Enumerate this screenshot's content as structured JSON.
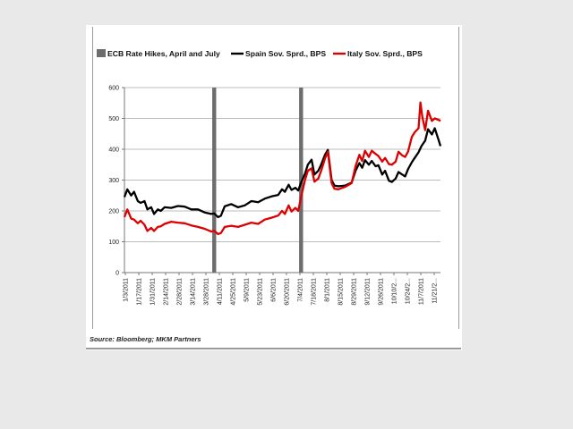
{
  "chart_data": {
    "type": "line",
    "title": "",
    "xlabel": "",
    "ylabel": "",
    "ylim": [
      0,
      600
    ],
    "yticks": [
      0,
      100,
      200,
      300,
      400,
      500,
      600
    ],
    "grid": "horizontal",
    "legend_position": "top",
    "x_tick_labels": [
      "1/3/2011",
      "1/17/2011",
      "1/31/2011",
      "2/14/2011",
      "2/28/2011",
      "3/14/2011",
      "3/28/2011",
      "4/11/2011",
      "4/25/2011",
      "5/9/2011",
      "5/23/2011",
      "6/6/2011",
      "6/20/2011",
      "7/4/2011",
      "7/18/2011",
      "8/1/2011",
      "8/15/2011",
      "8/29/2011",
      "9/12/2011",
      "9/26/2011",
      "10/10/2...",
      "10/24/2...",
      "11/7/2011",
      "11/21/2..."
    ],
    "x_start": "2011-01-03",
    "x_end": "2011-11-30",
    "legend": [
      {
        "label": "ECB Rate Hikes, April and July",
        "color": "#6d6d6d",
        "kind": "bar"
      },
      {
        "label": "Spain Sov. Sprd., BPS",
        "color": "#000000",
        "kind": "line"
      },
      {
        "label": "Italy Sov. Sprd., BPS",
        "color": "#dd0000",
        "kind": "line"
      }
    ],
    "events": [
      {
        "label": "ECB Rate Hike",
        "date": "2011-04-07"
      },
      {
        "label": "ECB Rate Hike",
        "date": "2011-07-07"
      }
    ],
    "series": [
      {
        "name": "Spain Sov. Sprd., BPS",
        "color": "#000000",
        "points": [
          [
            "2011-01-03",
            245
          ],
          [
            "2011-01-06",
            270
          ],
          [
            "2011-01-10",
            250
          ],
          [
            "2011-01-13",
            262
          ],
          [
            "2011-01-17",
            232
          ],
          [
            "2011-01-20",
            226
          ],
          [
            "2011-01-24",
            232
          ],
          [
            "2011-01-27",
            205
          ],
          [
            "2011-01-31",
            212
          ],
          [
            "2011-02-03",
            190
          ],
          [
            "2011-02-07",
            205
          ],
          [
            "2011-02-10",
            200
          ],
          [
            "2011-02-14",
            212
          ],
          [
            "2011-02-21",
            210
          ],
          [
            "2011-02-28",
            216
          ],
          [
            "2011-03-07",
            214
          ],
          [
            "2011-03-14",
            205
          ],
          [
            "2011-03-21",
            205
          ],
          [
            "2011-03-28",
            195
          ],
          [
            "2011-04-04",
            190
          ],
          [
            "2011-04-07",
            192
          ],
          [
            "2011-04-11",
            180
          ],
          [
            "2011-04-14",
            184
          ],
          [
            "2011-04-18",
            215
          ],
          [
            "2011-04-25",
            222
          ],
          [
            "2011-05-02",
            212
          ],
          [
            "2011-05-09",
            218
          ],
          [
            "2011-05-16",
            232
          ],
          [
            "2011-05-23",
            228
          ],
          [
            "2011-05-30",
            240
          ],
          [
            "2011-06-06",
            247
          ],
          [
            "2011-06-13",
            252
          ],
          [
            "2011-06-17",
            270
          ],
          [
            "2011-06-20",
            262
          ],
          [
            "2011-06-24",
            285
          ],
          [
            "2011-06-27",
            268
          ],
          [
            "2011-07-01",
            275
          ],
          [
            "2011-07-04",
            266
          ],
          [
            "2011-07-07",
            292
          ],
          [
            "2011-07-11",
            320
          ],
          [
            "2011-07-14",
            350
          ],
          [
            "2011-07-18",
            366
          ],
          [
            "2011-07-21",
            318
          ],
          [
            "2011-07-25",
            330
          ],
          [
            "2011-07-28",
            350
          ],
          [
            "2011-08-01",
            382
          ],
          [
            "2011-08-04",
            398
          ],
          [
            "2011-08-08",
            300
          ],
          [
            "2011-08-11",
            282
          ],
          [
            "2011-08-15",
            280
          ],
          [
            "2011-08-22",
            282
          ],
          [
            "2011-08-29",
            292
          ],
          [
            "2011-09-02",
            330
          ],
          [
            "2011-09-06",
            355
          ],
          [
            "2011-09-09",
            340
          ],
          [
            "2011-09-12",
            365
          ],
          [
            "2011-09-16",
            350
          ],
          [
            "2011-09-19",
            362
          ],
          [
            "2011-09-23",
            345
          ],
          [
            "2011-09-26",
            348
          ],
          [
            "2011-09-30",
            318
          ],
          [
            "2011-10-03",
            330
          ],
          [
            "2011-10-07",
            298
          ],
          [
            "2011-10-10",
            294
          ],
          [
            "2011-10-14",
            305
          ],
          [
            "2011-10-17",
            326
          ],
          [
            "2011-10-21",
            318
          ],
          [
            "2011-10-24",
            312
          ],
          [
            "2011-10-27",
            335
          ],
          [
            "2011-10-31",
            358
          ],
          [
            "2011-11-03",
            372
          ],
          [
            "2011-11-07",
            390
          ],
          [
            "2011-11-10",
            410
          ],
          [
            "2011-11-14",
            428
          ],
          [
            "2011-11-17",
            465
          ],
          [
            "2011-11-21",
            448
          ],
          [
            "2011-11-24",
            468
          ],
          [
            "2011-11-28",
            430
          ],
          [
            "2011-11-30",
            410
          ]
        ]
      },
      {
        "name": "Italy Sov. Sprd., BPS",
        "color": "#dd0000",
        "points": [
          [
            "2011-01-03",
            180
          ],
          [
            "2011-01-06",
            205
          ],
          [
            "2011-01-10",
            175
          ],
          [
            "2011-01-13",
            172
          ],
          [
            "2011-01-17",
            160
          ],
          [
            "2011-01-20",
            168
          ],
          [
            "2011-01-24",
            155
          ],
          [
            "2011-01-27",
            135
          ],
          [
            "2011-01-31",
            145
          ],
          [
            "2011-02-03",
            135
          ],
          [
            "2011-02-07",
            148
          ],
          [
            "2011-02-10",
            150
          ],
          [
            "2011-02-14",
            158
          ],
          [
            "2011-02-21",
            165
          ],
          [
            "2011-02-28",
            162
          ],
          [
            "2011-03-07",
            160
          ],
          [
            "2011-03-14",
            153
          ],
          [
            "2011-03-21",
            148
          ],
          [
            "2011-03-28",
            142
          ],
          [
            "2011-04-04",
            133
          ],
          [
            "2011-04-07",
            136
          ],
          [
            "2011-04-11",
            125
          ],
          [
            "2011-04-14",
            128
          ],
          [
            "2011-04-18",
            148
          ],
          [
            "2011-04-25",
            152
          ],
          [
            "2011-05-02",
            148
          ],
          [
            "2011-05-09",
            155
          ],
          [
            "2011-05-16",
            162
          ],
          [
            "2011-05-23",
            158
          ],
          [
            "2011-05-30",
            172
          ],
          [
            "2011-06-06",
            178
          ],
          [
            "2011-06-13",
            185
          ],
          [
            "2011-06-17",
            200
          ],
          [
            "2011-06-20",
            190
          ],
          [
            "2011-06-24",
            218
          ],
          [
            "2011-06-27",
            198
          ],
          [
            "2011-07-01",
            210
          ],
          [
            "2011-07-04",
            200
          ],
          [
            "2011-07-07",
            245
          ],
          [
            "2011-07-11",
            300
          ],
          [
            "2011-07-14",
            330
          ],
          [
            "2011-07-18",
            338
          ],
          [
            "2011-07-21",
            295
          ],
          [
            "2011-07-25",
            305
          ],
          [
            "2011-07-28",
            330
          ],
          [
            "2011-08-01",
            370
          ],
          [
            "2011-08-04",
            392
          ],
          [
            "2011-08-08",
            290
          ],
          [
            "2011-08-11",
            272
          ],
          [
            "2011-08-15",
            270
          ],
          [
            "2011-08-22",
            278
          ],
          [
            "2011-08-29",
            290
          ],
          [
            "2011-09-02",
            345
          ],
          [
            "2011-09-06",
            382
          ],
          [
            "2011-09-09",
            362
          ],
          [
            "2011-09-12",
            395
          ],
          [
            "2011-09-16",
            375
          ],
          [
            "2011-09-19",
            395
          ],
          [
            "2011-09-23",
            385
          ],
          [
            "2011-09-26",
            378
          ],
          [
            "2011-09-30",
            360
          ],
          [
            "2011-10-03",
            372
          ],
          [
            "2011-10-07",
            352
          ],
          [
            "2011-10-10",
            350
          ],
          [
            "2011-10-14",
            360
          ],
          [
            "2011-10-17",
            392
          ],
          [
            "2011-10-21",
            380
          ],
          [
            "2011-10-24",
            375
          ],
          [
            "2011-10-27",
            392
          ],
          [
            "2011-10-31",
            440
          ],
          [
            "2011-11-03",
            455
          ],
          [
            "2011-11-07",
            468
          ],
          [
            "2011-11-09",
            552
          ],
          [
            "2011-11-11",
            505
          ],
          [
            "2011-11-14",
            462
          ],
          [
            "2011-11-17",
            525
          ],
          [
            "2011-11-21",
            492
          ],
          [
            "2011-11-24",
            500
          ],
          [
            "2011-11-28",
            495
          ],
          [
            "2011-11-30",
            492
          ]
        ]
      }
    ]
  },
  "source": "Source: Bloomberg; MKM Partners"
}
